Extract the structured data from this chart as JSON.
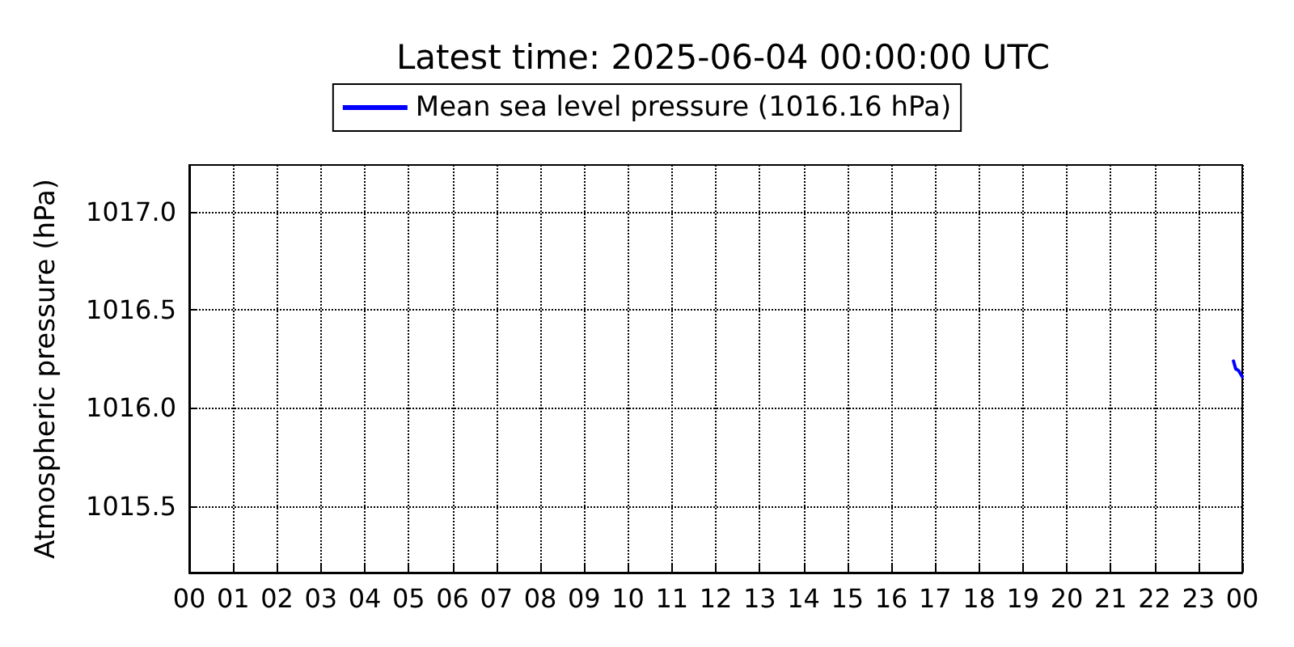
{
  "chart_data": {
    "type": "line",
    "title": "Latest time: 2025-06-04 00:00:00 UTC",
    "ylabel": "Atmospheric pressure (hPa)",
    "x": [
      23.8,
      23.85,
      23.92,
      24
    ],
    "series": [
      {
        "name": "Mean sea level pressure (1016.16 hPa)",
        "color": "#0000ff",
        "values": [
          1016.24,
          1016.2,
          1016.19,
          1016.16
        ]
      }
    ],
    "xlim": [
      0,
      24
    ],
    "xticks": [
      {
        "value": 0,
        "label": "00"
      },
      {
        "value": 1,
        "label": "01"
      },
      {
        "value": 2,
        "label": "02"
      },
      {
        "value": 3,
        "label": "03"
      },
      {
        "value": 4,
        "label": "04"
      },
      {
        "value": 5,
        "label": "05"
      },
      {
        "value": 6,
        "label": "06"
      },
      {
        "value": 7,
        "label": "07"
      },
      {
        "value": 8,
        "label": "08"
      },
      {
        "value": 9,
        "label": "09"
      },
      {
        "value": 10,
        "label": "10"
      },
      {
        "value": 11,
        "label": "11"
      },
      {
        "value": 12,
        "label": "12"
      },
      {
        "value": 13,
        "label": "13"
      },
      {
        "value": 14,
        "label": "14"
      },
      {
        "value": 15,
        "label": "15"
      },
      {
        "value": 16,
        "label": "16"
      },
      {
        "value": 17,
        "label": "17"
      },
      {
        "value": 18,
        "label": "18"
      },
      {
        "value": 19,
        "label": "19"
      },
      {
        "value": 20,
        "label": "20"
      },
      {
        "value": 21,
        "label": "21"
      },
      {
        "value": 22,
        "label": "22"
      },
      {
        "value": 23,
        "label": "23"
      },
      {
        "value": 24,
        "label": "00"
      }
    ],
    "ylim": [
      1015.16,
      1017.24
    ],
    "yticks": [
      {
        "value": 1015.5,
        "label": "1015.5"
      },
      {
        "value": 1016,
        "label": "1016.0"
      },
      {
        "value": 1016.5,
        "label": "1016.5"
      },
      {
        "value": 1017,
        "label": "1017.0"
      }
    ],
    "grid": true,
    "legend": "top",
    "marker": "none",
    "line_style": "solid"
  }
}
